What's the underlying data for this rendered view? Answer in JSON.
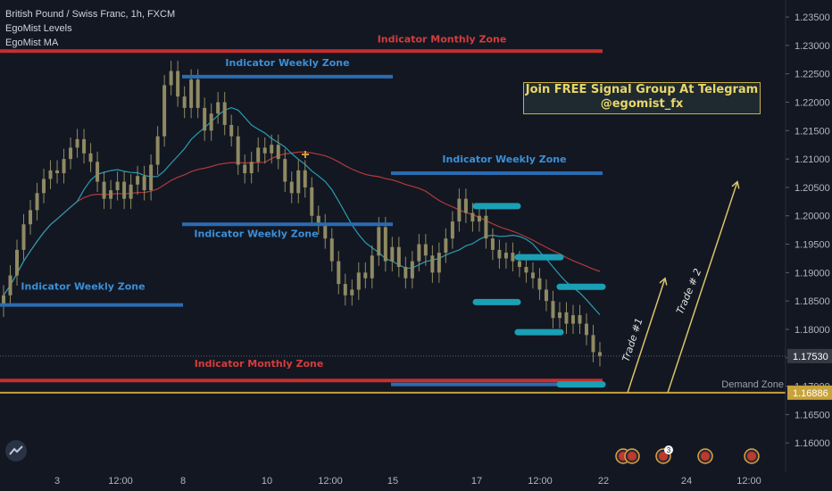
{
  "legend": {
    "title": "British Pound / Swiss Franc, 1h, FXCM",
    "indicator1": "EgoMist Levels",
    "indicator2": "EgoMist MA"
  },
  "banner": {
    "line1": "Join FREE Signal Group At Telegram",
    "line2": "@egomist_fx"
  },
  "colors": {
    "background": "#131722",
    "monthly_zone": "#c62f2f",
    "weekly_zone": "#2b6cb0",
    "target": "#1aa0b5",
    "demand": "#c8a23a",
    "ma_red": "#b23a3a",
    "ma_teal": "#2a9db1",
    "candle": "#8f8a62"
  },
  "chart_data": {
    "type": "candlestick",
    "symbol": "GBPCHF",
    "timeframe": "1h",
    "ylim": [
      1.155,
      1.238
    ],
    "y_ticks": [
      "1.16000",
      "1.16500",
      "1.17000",
      "1.17500",
      "1.18000",
      "1.18500",
      "1.19000",
      "1.19500",
      "1.20000",
      "1.20500",
      "1.21000",
      "1.21500",
      "1.22000",
      "1.22500",
      "1.23000",
      "1.23500"
    ],
    "x_ticks": [
      "3",
      "12:00",
      "8",
      "10",
      "12:00",
      "15",
      "17",
      "12:00",
      "22",
      "24",
      "12:00"
    ],
    "price_labels": {
      "last": "1.17530",
      "demand": "1.16886"
    },
    "zones": [
      {
        "label": "Indicator Monthly Zone",
        "kind": "monthly",
        "price": 1.229
      },
      {
        "label": "Indicator Weekly Zone",
        "kind": "weekly",
        "price": 1.2245
      },
      {
        "label": "Indicator Weekly Zone",
        "kind": "weekly",
        "price": 1.2075
      },
      {
        "label": "Indicator Weekly Zone",
        "kind": "weekly",
        "price": 1.1985
      },
      {
        "label": "Indicator Weekly Zone",
        "kind": "weekly",
        "price": 1.1843
      },
      {
        "label": "Indicator Monthly Zone",
        "kind": "monthly",
        "price": 1.171
      },
      {
        "label": "",
        "kind": "weekly",
        "price": 1.1703
      }
    ],
    "demand_zone": {
      "label": "Demand Zone",
      "price": 1.16886
    },
    "targets": [
      1.2017,
      1.1927,
      1.1875,
      1.1848,
      1.1795,
      1.1703
    ],
    "trades": [
      {
        "label": "Trade #1",
        "from": 1.16886,
        "to": 1.189
      },
      {
        "label": "Trade # 2",
        "from": 1.16886,
        "to": 1.206
      }
    ],
    "event_badges": [
      "+",
      "3",
      "+",
      "+"
    ],
    "candles_close": [
      1.186,
      1.1895,
      1.194,
      1.1985,
      1.201,
      1.204,
      1.2065,
      1.208,
      1.2075,
      1.21,
      1.212,
      1.2135,
      1.211,
      1.2095,
      1.206,
      1.203,
      1.2045,
      1.206,
      1.203,
      1.2055,
      1.207,
      1.2045,
      1.209,
      1.214,
      1.223,
      1.2255,
      1.221,
      1.219,
      1.224,
      1.219,
      1.215,
      1.218,
      1.22,
      1.216,
      1.214,
      1.209,
      1.2075,
      1.2095,
      1.212,
      1.211,
      1.2125,
      1.21,
      1.206,
      1.204,
      1.208,
      1.205,
      1.2,
      1.1985,
      1.196,
      1.192,
      1.188,
      1.186,
      1.187,
      1.19,
      1.189,
      1.193,
      1.198,
      1.192,
      1.1945,
      1.191,
      1.189,
      1.192,
      1.195,
      1.193,
      1.19,
      1.1935,
      1.196,
      1.199,
      1.203,
      1.2005,
      1.199,
      1.2,
      1.196,
      1.194,
      1.1925,
      1.1935,
      1.192,
      1.191,
      1.19,
      1.189,
      1.187,
      1.185,
      1.182,
      1.183,
      1.181,
      1.1825,
      1.181,
      1.179,
      1.176,
      1.1753
    ]
  }
}
